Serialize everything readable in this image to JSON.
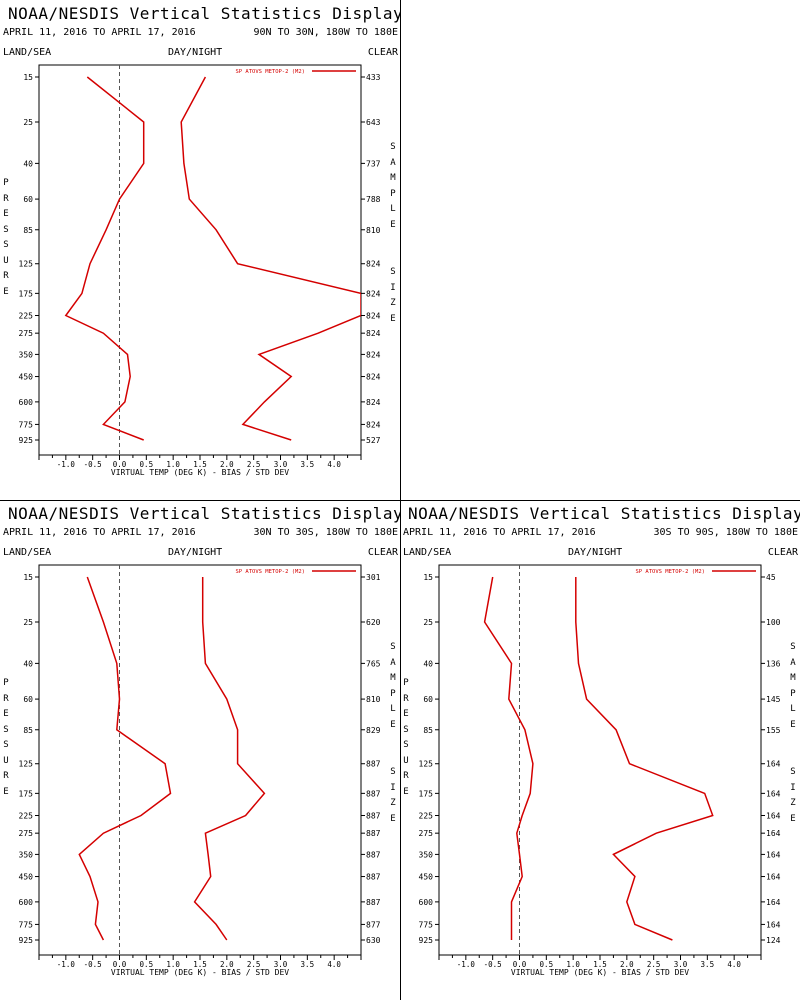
{
  "panels": [
    {
      "title": "NOAA/NESDIS Vertical Statistics Display",
      "date_range": "APRIL 11, 2016 TO APRIL 17, 2016",
      "region": "90N TO 30N, 180W TO 180E",
      "land_sea": "LAND/SEA",
      "day_night": "DAY/NIGHT",
      "clear": "CLEAR",
      "y_side_label": "PRESSURE",
      "sample_size_label": [
        "SAMPLE",
        "SIZE"
      ],
      "chart_data": {
        "type": "line",
        "xlabel": "VIRTUAL TEMP (DEG K) - BIAS / STD DEV",
        "xlim": [
          -1.5,
          4.5
        ],
        "x_ticks": [
          "-1.0",
          "-0.5",
          "0.0",
          "0.5",
          "1.0",
          "1.5",
          "2.0",
          "2.5",
          "3.0",
          "3.5",
          "4.0"
        ],
        "pressure_levels": [
          "15",
          "25",
          "40",
          "60",
          "85",
          "125",
          "175",
          "225",
          "275",
          "350",
          "450",
          "600",
          "775",
          "925"
        ],
        "sample_sizes": [
          "433",
          "643",
          "737",
          "788",
          "810",
          "824",
          "824",
          "824",
          "824",
          "824",
          "824",
          "824",
          "824",
          "527"
        ],
        "legend": {
          "label": "SP ATOVS METOP-2 (M2)",
          "position": "top-right"
        },
        "series": [
          {
            "name": "bias",
            "values": [
              -0.6,
              0.45,
              0.45,
              0.0,
              -0.25,
              -0.55,
              -0.7,
              -1.0,
              -0.3,
              0.15,
              0.2,
              0.1,
              -0.3,
              0.45
            ]
          },
          {
            "name": "std dev",
            "values": [
              1.6,
              1.15,
              1.2,
              1.3,
              1.8,
              2.2,
              4.5,
              4.5,
              3.7,
              2.6,
              3.2,
              2.7,
              2.3,
              3.2
            ]
          }
        ]
      }
    },
    {
      "title": "NOAA/NESDIS Vertical Statistics Display",
      "date_range": "APRIL 11, 2016 TO APRIL 17, 2016",
      "region": "30N TO 30S, 180W TO 180E",
      "land_sea": "LAND/SEA",
      "day_night": "DAY/NIGHT",
      "clear": "CLEAR",
      "y_side_label": "PRESSURE",
      "sample_size_label": [
        "SAMPLE",
        "SIZE"
      ],
      "chart_data": {
        "type": "line",
        "xlabel": "VIRTUAL TEMP (DEG K) - BIAS / STD DEV",
        "xlim": [
          -1.5,
          4.5
        ],
        "x_ticks": [
          "-1.0",
          "-0.5",
          "0.0",
          "0.5",
          "1.0",
          "1.5",
          "2.0",
          "2.5",
          "3.0",
          "3.5",
          "4.0"
        ],
        "pressure_levels": [
          "15",
          "25",
          "40",
          "60",
          "85",
          "125",
          "175",
          "225",
          "275",
          "350",
          "450",
          "600",
          "775",
          "925"
        ],
        "sample_sizes": [
          "301",
          "620",
          "765",
          "810",
          "829",
          "887",
          "887",
          "887",
          "887",
          "887",
          "887",
          "887",
          "877",
          "630"
        ],
        "legend": {
          "label": "SP ATOVS METOP-2 (M2)",
          "position": "top-right"
        },
        "series": [
          {
            "name": "bias",
            "values": [
              -0.6,
              -0.3,
              -0.05,
              0.0,
              -0.05,
              0.85,
              0.95,
              0.4,
              -0.3,
              -0.75,
              -0.55,
              -0.4,
              -0.45,
              -0.3
            ]
          },
          {
            "name": "std dev",
            "values": [
              1.55,
              1.55,
              1.6,
              2.0,
              2.2,
              2.2,
              2.7,
              2.35,
              1.6,
              1.65,
              1.7,
              1.4,
              1.8,
              2.0
            ]
          }
        ]
      }
    },
    {
      "title": "NOAA/NESDIS Vertical Statistics Display",
      "date_range": "APRIL 11, 2016 TO APRIL 17, 2016",
      "region": "30S TO 90S, 180W TO 180E",
      "land_sea": "LAND/SEA",
      "day_night": "DAY/NIGHT",
      "clear": "CLEAR",
      "y_side_label": "PRESSURE",
      "sample_size_label": [
        "SAMPLE",
        "SIZE"
      ],
      "chart_data": {
        "type": "line",
        "xlabel": "VIRTUAL TEMP (DEG K) - BIAS / STD DEV",
        "xlim": [
          -1.5,
          4.5
        ],
        "x_ticks": [
          "-1.0",
          "-0.5",
          "0.0",
          "0.5",
          "1.0",
          "1.5",
          "2.0",
          "2.5",
          "3.0",
          "3.5",
          "4.0"
        ],
        "pressure_levels": [
          "15",
          "25",
          "40",
          "60",
          "85",
          "125",
          "175",
          "225",
          "275",
          "350",
          "450",
          "600",
          "775",
          "925"
        ],
        "sample_sizes": [
          "45",
          "100",
          "136",
          "145",
          "155",
          "164",
          "164",
          "164",
          "164",
          "164",
          "164",
          "164",
          "164",
          "124"
        ],
        "legend": {
          "label": "SP ATOVS METOP-2 (M2)",
          "position": "top-right"
        },
        "series": [
          {
            "name": "bias",
            "values": [
              -0.5,
              -0.65,
              -0.15,
              -0.2,
              0.1,
              0.25,
              0.2,
              0.05,
              -0.05,
              0.0,
              0.05,
              -0.15,
              -0.15,
              -0.15
            ]
          },
          {
            "name": "std dev",
            "values": [
              1.05,
              1.05,
              1.1,
              1.25,
              1.8,
              2.05,
              3.45,
              3.6,
              2.55,
              1.75,
              2.15,
              2.0,
              2.15,
              2.85
            ]
          }
        ]
      }
    }
  ]
}
